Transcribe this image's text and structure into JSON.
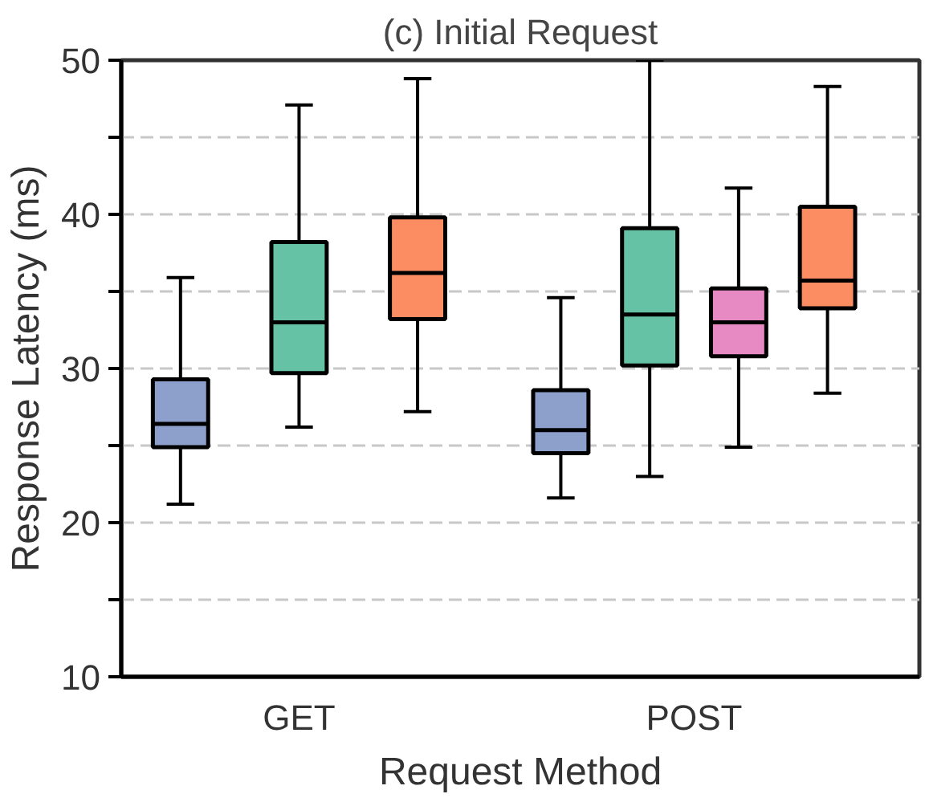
{
  "chart_data": {
    "type": "box",
    "title": "(c) Initial Request",
    "xlabel": "Request Method",
    "ylabel": "Response Latency (ms)",
    "categories": [
      "GET",
      "POST"
    ],
    "series": [
      {
        "color": "#8da0cb",
        "boxes": [
          {
            "low": 21.2,
            "q1": 24.9,
            "median": 26.4,
            "q3": 29.3,
            "high": 35.9
          },
          {
            "low": 21.6,
            "q1": 24.5,
            "median": 26.0,
            "q3": 28.6,
            "high": 34.6
          }
        ]
      },
      {
        "color": "#66c2a5",
        "boxes": [
          {
            "low": 26.2,
            "q1": 29.7,
            "median": 33.0,
            "q3": 38.2,
            "high": 47.1
          },
          {
            "low": 23.0,
            "q1": 30.2,
            "median": 33.5,
            "q3": 39.1,
            "high": 50
          }
        ]
      },
      {
        "color": "#e78ac3",
        "boxes": [
          null,
          {
            "low": 24.9,
            "q1": 30.8,
            "median": 33.0,
            "q3": 35.2,
            "high": 41.7
          }
        ]
      },
      {
        "color": "#fc8d62",
        "boxes": [
          {
            "low": 27.2,
            "q1": 33.2,
            "median": 36.2,
            "q3": 39.8,
            "high": 48.8
          },
          {
            "low": 28.4,
            "q1": 33.9,
            "median": 35.7,
            "q3": 40.5,
            "high": 48.3
          }
        ]
      }
    ],
    "ylim": [
      10,
      50
    ],
    "yticks": [
      10,
      {
        "value": 15,
        "label": null
      },
      20,
      {
        "value": 25,
        "label": null
      },
      30,
      {
        "value": 35,
        "label": null
      },
      40,
      {
        "value": 45,
        "label": null
      },
      50
    ],
    "grid": "y"
  }
}
